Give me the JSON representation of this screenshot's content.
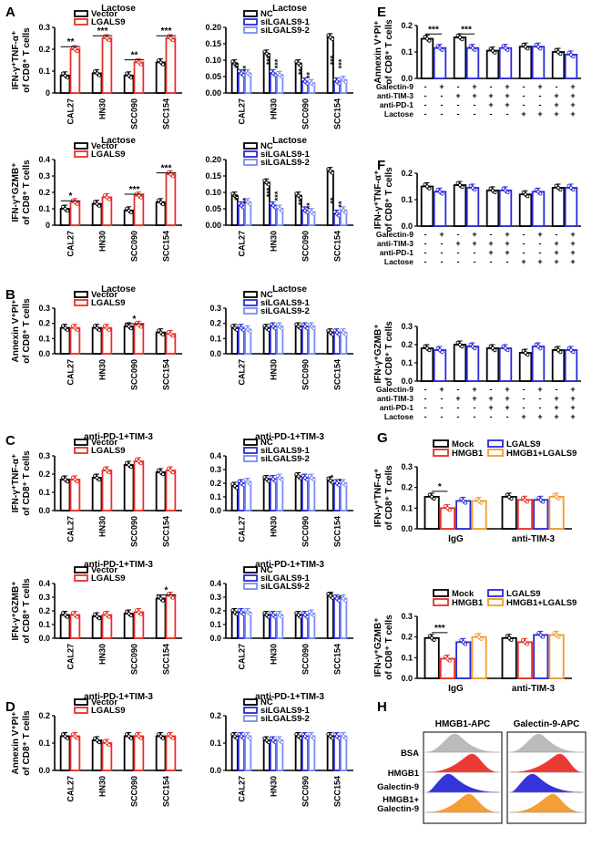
{
  "panel_letters": [
    "A",
    "B",
    "C",
    "D",
    "E",
    "F",
    "G",
    "H"
  ],
  "colors": {
    "black": "#000000",
    "red": "#e8312a",
    "blue": "#2a2ad6",
    "lightblue": "#7a8cf0",
    "orange": "#f39a2b",
    "gray": "#b8b8b8"
  },
  "chart_data": [
    {
      "id": "A1",
      "type": "bar",
      "title": "Lactose",
      "ylabel": [
        "IFN-γ⁺TNF-α⁺",
        "of CD8⁺ T cells"
      ],
      "ylim": [
        0,
        0.3
      ],
      "yticks": [
        0,
        0.1,
        0.2,
        0.3
      ],
      "yticklabels": [
        "0",
        "0.1",
        "0.2",
        "0.3"
      ],
      "categories": [
        "CAL27",
        "HN30",
        "SCC090",
        "SCC154"
      ],
      "legend": [
        "Vector",
        "LGALS9"
      ],
      "colorkeys": [
        "black",
        "red"
      ],
      "values": [
        [
          0.08,
          0.2
        ],
        [
          0.09,
          0.25
        ],
        [
          0.08,
          0.14
        ],
        [
          0.14,
          0.25
        ]
      ],
      "stars": [
        [
          "**",
          0.22
        ],
        [
          "***",
          0.27
        ],
        [
          "**",
          0.16
        ],
        [
          "***",
          0.27
        ]
      ]
    },
    {
      "id": "A2",
      "type": "bar",
      "title": "Lactose",
      "ylim": [
        0,
        0.2
      ],
      "yticks": [
        0,
        0.05,
        0.1,
        0.15,
        0.2
      ],
      "yticklabels": [
        "0.00",
        "0.05",
        "0.10",
        "0.15",
        "0.20"
      ],
      "categories": [
        "CAL27",
        "HN30",
        "SCC090",
        "SCC154"
      ],
      "legend": [
        "NC",
        "siLGALS9-1",
        "siLGALS9-2"
      ],
      "colorkeys": [
        "black",
        "blue",
        "lightblue"
      ],
      "values": [
        [
          0.09,
          0.06,
          0.06
        ],
        [
          0.12,
          0.06,
          0.055
        ],
        [
          0.09,
          0.035,
          0.03
        ],
        [
          0.17,
          0.035,
          0.04
        ]
      ],
      "stars": [
        [
          "**",
          0.085
        ],
        [
          "***",
          0.1
        ],
        [
          "**",
          0.065
        ],
        [
          "***",
          0.1
        ]
      ]
    },
    {
      "id": "A3",
      "type": "bar",
      "title": "Lactose",
      "ylabel": [
        "IFN-γ⁺GZMB⁺",
        "of CD8⁺ T cells"
      ],
      "ylim": [
        0,
        0.4
      ],
      "yticks": [
        0,
        0.1,
        0.2,
        0.3,
        0.4
      ],
      "yticklabels": [
        "0",
        "0.1",
        "0.2",
        "0.3",
        "0.4"
      ],
      "categories": [
        "CAL27",
        "HN30",
        "SCC090",
        "SCC154"
      ],
      "legend": [
        "Vector",
        "LGALS9"
      ],
      "colorkeys": [
        "black",
        "red"
      ],
      "values": [
        [
          0.1,
          0.14
        ],
        [
          0.13,
          0.17
        ],
        [
          0.09,
          0.18
        ],
        [
          0.14,
          0.31
        ]
      ],
      "stars": [
        [
          "*",
          0.16
        ],
        [
          "",
          0
        ],
        [
          "***",
          0.2
        ],
        [
          "***",
          0.33
        ]
      ]
    },
    {
      "id": "A4",
      "type": "bar",
      "title": "Lactose",
      "ylim": [
        0,
        0.2
      ],
      "yticks": [
        0,
        0.05,
        0.1,
        0.15,
        0.2
      ],
      "yticklabels": [
        "0.00",
        "0.05",
        "0.10",
        "0.15",
        "0.20"
      ],
      "categories": [
        "CAL27",
        "HN30",
        "SCC090",
        "SCC154"
      ],
      "legend": [
        "NC",
        "siLGALS9-1",
        "siLGALS9-2"
      ],
      "colorkeys": [
        "black",
        "blue",
        "lightblue"
      ],
      "values": [
        [
          0.09,
          0.06,
          0.07
        ],
        [
          0.13,
          0.06,
          0.05
        ],
        [
          0.09,
          0.045,
          0.04
        ],
        [
          0.165,
          0.035,
          0.045
        ]
      ],
      "stars": [
        [
          "**",
          0.085
        ],
        [
          "***",
          0.1
        ],
        [
          "**",
          0.07
        ],
        [
          "**",
          0.075
        ]
      ]
    },
    {
      "id": "B1",
      "type": "bar",
      "title": "Lactose",
      "ylabel": [
        "Annexin V⁺PI⁺",
        "of CD8⁺ T cells"
      ],
      "ylim": [
        0,
        0.3
      ],
      "yticks": [
        0,
        0.1,
        0.2,
        0.3
      ],
      "yticklabels": [
        "0.0",
        "0.1",
        "0.2",
        "0.3"
      ],
      "categories": [
        "CAL27",
        "HN30",
        "SCC090",
        "SCC154"
      ],
      "legend": [
        "Vector",
        "LGALS9"
      ],
      "colorkeys": [
        "black",
        "red"
      ],
      "values": [
        [
          0.17,
          0.17
        ],
        [
          0.17,
          0.17
        ],
        [
          0.18,
          0.19
        ],
        [
          0.14,
          0.13
        ]
      ],
      "stars": [
        [
          "",
          0
        ],
        [
          "",
          0
        ],
        [
          "*",
          0.21
        ],
        [
          "",
          0
        ]
      ]
    },
    {
      "id": "B2",
      "type": "bar",
      "title": "Lactose",
      "ylim": [
        0,
        0.3
      ],
      "yticks": [
        0,
        0.1,
        0.2,
        0.3
      ],
      "yticklabels": [
        "0.0",
        "0.1",
        "0.2",
        "0.3"
      ],
      "categories": [
        "CAL27",
        "HN30",
        "SCC090",
        "SCC154"
      ],
      "legend": [
        "NC",
        "siLGALS9-1",
        "siLGALS9-2"
      ],
      "colorkeys": [
        "black",
        "blue",
        "lightblue"
      ],
      "values": [
        [
          0.17,
          0.17,
          0.16
        ],
        [
          0.17,
          0.18,
          0.18
        ],
        [
          0.18,
          0.18,
          0.18
        ],
        [
          0.14,
          0.14,
          0.14
        ]
      ],
      "stars": []
    },
    {
      "id": "C1",
      "type": "bar",
      "title": "anti-PD-1+TIM-3",
      "ylabel": [
        "IFN-γ⁺TNF-α⁺",
        "of CD8⁺ T cells"
      ],
      "ylim": [
        0,
        0.3
      ],
      "yticks": [
        0,
        0.1,
        0.2,
        0.3
      ],
      "yticklabels": [
        "0.0",
        "0.1",
        "0.2",
        "0.3"
      ],
      "categories": [
        "CAL27",
        "HN30",
        "SCC090",
        "SCC154"
      ],
      "legend": [
        "Vector",
        "LGALS9"
      ],
      "colorkeys": [
        "black",
        "red"
      ],
      "values": [
        [
          0.17,
          0.17
        ],
        [
          0.18,
          0.22
        ],
        [
          0.25,
          0.27
        ],
        [
          0.21,
          0.22
        ]
      ],
      "stars": []
    },
    {
      "id": "C2",
      "type": "bar",
      "title": "anti-PD-1+TIM-3",
      "ylim": [
        0,
        0.4
      ],
      "yticks": [
        0,
        0.1,
        0.2,
        0.3,
        0.4
      ],
      "yticklabels": [
        "0.0",
        "0.1",
        "0.2",
        "0.3",
        "0.4"
      ],
      "categories": [
        "CAL27",
        "HN30",
        "SCC090",
        "SCC154"
      ],
      "legend": [
        "NC",
        "siLGALS9-1",
        "siLGALS9-2"
      ],
      "colorkeys": [
        "black",
        "blue",
        "lightblue"
      ],
      "values": [
        [
          0.18,
          0.2,
          0.21
        ],
        [
          0.23,
          0.23,
          0.24
        ],
        [
          0.25,
          0.24,
          0.24
        ],
        [
          0.22,
          0.2,
          0.2
        ]
      ],
      "stars": [
        [
          "",
          0
        ],
        [
          "",
          0
        ],
        [
          "",
          0
        ],
        [
          "*",
          0.25
        ]
      ]
    },
    {
      "id": "C3",
      "type": "bar",
      "title": "anti-PD-1+TIM-3",
      "ylabel": [
        "IFN-γ⁺GZMB⁺",
        "of CD8⁺ T cells"
      ],
      "ylim": [
        0,
        0.4
      ],
      "yticks": [
        0,
        0.1,
        0.2,
        0.3,
        0.4
      ],
      "yticklabels": [
        "0.0",
        "0.1",
        "0.2",
        "0.3",
        "0.4"
      ],
      "categories": [
        "CAL27",
        "HN30",
        "SCC090",
        "SCC154"
      ],
      "legend": [
        "Vector",
        "LGALS9"
      ],
      "colorkeys": [
        "black",
        "red"
      ],
      "values": [
        [
          0.17,
          0.17
        ],
        [
          0.16,
          0.17
        ],
        [
          0.18,
          0.19
        ],
        [
          0.29,
          0.31
        ]
      ],
      "stars": [
        [
          "",
          0
        ],
        [
          "",
          0
        ],
        [
          "",
          0
        ],
        [
          "*",
          0.33
        ]
      ]
    },
    {
      "id": "C4",
      "type": "bar",
      "title": "anti-PD-1+TIM-3",
      "ylim": [
        0,
        0.4
      ],
      "yticks": [
        0,
        0.1,
        0.2,
        0.3,
        0.4
      ],
      "yticklabels": [
        "0.0",
        "0.1",
        "0.2",
        "0.3",
        "0.4"
      ],
      "categories": [
        "CAL27",
        "HN30",
        "SCC090",
        "SCC154"
      ],
      "legend": [
        "NC",
        "siLGALS9-1",
        "siLGALS9-2"
      ],
      "colorkeys": [
        "black",
        "blue",
        "lightblue"
      ],
      "values": [
        [
          0.19,
          0.19,
          0.19
        ],
        [
          0.17,
          0.17,
          0.17
        ],
        [
          0.17,
          0.17,
          0.18
        ],
        [
          0.31,
          0.29,
          0.29
        ]
      ],
      "stars": [
        [
          "",
          0
        ],
        [
          "",
          0
        ],
        [
          "",
          0
        ],
        [
          "*",
          0.33
        ]
      ]
    },
    {
      "id": "D1",
      "type": "bar",
      "title": "anti-PD-1+TIM-3",
      "ylabel": [
        "Annexin V⁺PI⁺",
        "of CD8⁺ T cells"
      ],
      "ylim": [
        0,
        0.2
      ],
      "yticks": [
        0,
        0.1,
        0.2
      ],
      "yticklabels": [
        "0.0",
        "0.1",
        "0.2"
      ],
      "categories": [
        "CAL27",
        "HN30",
        "SCC090",
        "SCC154"
      ],
      "legend": [
        "Vector",
        "LGALS9"
      ],
      "colorkeys": [
        "black",
        "red"
      ],
      "values": [
        [
          0.125,
          0.125
        ],
        [
          0.11,
          0.1
        ],
        [
          0.125,
          0.125
        ],
        [
          0.125,
          0.125
        ]
      ],
      "stars": []
    },
    {
      "id": "D2",
      "type": "bar",
      "title": "anti-PD-1+TIM-3",
      "ylim": [
        0,
        0.2
      ],
      "yticks": [
        0,
        0.1,
        0.2
      ],
      "yticklabels": [
        "0.0",
        "0.1",
        "0.2"
      ],
      "categories": [
        "CAL27",
        "HN30",
        "SCC090",
        "SCC154"
      ],
      "legend": [
        "NC",
        "siLGALS9-1",
        "siLGALS9-2"
      ],
      "colorkeys": [
        "black",
        "blue",
        "lightblue"
      ],
      "values": [
        [
          0.125,
          0.125,
          0.125
        ],
        [
          0.11,
          0.11,
          0.11
        ],
        [
          0.125,
          0.125,
          0.125
        ],
        [
          0.125,
          0.125,
          0.125
        ]
      ],
      "stars": []
    },
    {
      "id": "E",
      "type": "bar",
      "ylabel": [
        "Annexin V⁺PI⁺",
        "of CD8⁺ T cells"
      ],
      "ylim": [
        0,
        0.2
      ],
      "yticks": [
        0,
        0.1,
        0.2
      ],
      "yticklabels": [
        "0.0",
        "0.1",
        "0.2"
      ],
      "values": [
        0.15,
        0.115,
        0.155,
        0.115,
        0.105,
        0.115,
        0.12,
        0.12,
        0.1,
        0.09
      ],
      "colorkeys": [
        "black",
        "blue",
        "black",
        "blue",
        "black",
        "blue",
        "black",
        "blue",
        "black",
        "blue"
      ],
      "stars": [
        [
          "***",
          0,
          1,
          0.175
        ],
        [
          "***",
          2,
          3,
          0.175
        ]
      ],
      "treatments": {
        "rows": [
          "Galectin-9",
          "anti-TIM-3",
          "anti-PD-1",
          "Lactose"
        ],
        "signs": [
          [
            "-",
            "+",
            "-",
            "+",
            "-",
            "+",
            "-",
            "+",
            "-",
            "+"
          ],
          [
            "-",
            "-",
            "+",
            "+",
            "+",
            "+",
            "-",
            "-",
            "+",
            "+"
          ],
          [
            "-",
            "-",
            "-",
            "-",
            "+",
            "+",
            "-",
            "-",
            "+",
            "+"
          ],
          [
            "-",
            "-",
            "-",
            "-",
            "-",
            "-",
            "+",
            "+",
            "+",
            "+"
          ]
        ]
      }
    },
    {
      "id": "F1",
      "type": "bar",
      "ylabel": [
        "IFN-γ⁺TNF-α⁺",
        "of CD8⁺ T cells"
      ],
      "ylim": [
        0,
        0.2
      ],
      "yticks": [
        0,
        0.1,
        0.2
      ],
      "yticklabels": [
        "0.0",
        "0.1",
        "0.2"
      ],
      "values": [
        0.15,
        0.13,
        0.155,
        0.145,
        0.135,
        0.135,
        0.12,
        0.13,
        0.145,
        0.145
      ],
      "colorkeys": [
        "black",
        "blue",
        "black",
        "blue",
        "black",
        "blue",
        "black",
        "blue",
        "black",
        "blue"
      ],
      "stars": [],
      "treatments": {
        "rows": [
          "Galectin-9",
          "anti-TIM-3",
          "anti-PD-1",
          "Lactose"
        ],
        "signs": [
          [
            "-",
            "+",
            "-",
            "+",
            "-",
            "+",
            "-",
            "+",
            "-",
            "+"
          ],
          [
            "-",
            "-",
            "+",
            "+",
            "+",
            "+",
            "-",
            "-",
            "+",
            "+"
          ],
          [
            "-",
            "-",
            "-",
            "-",
            "+",
            "+",
            "-",
            "-",
            "+",
            "+"
          ],
          [
            "-",
            "-",
            "-",
            "-",
            "-",
            "-",
            "+",
            "+",
            "+",
            "+"
          ]
        ]
      }
    },
    {
      "id": "F2",
      "type": "bar",
      "ylabel": [
        "IFN-γ⁺GZMB⁺",
        "of CD8⁺ T cells"
      ],
      "ylim": [
        0,
        0.3
      ],
      "yticks": [
        0,
        0.1,
        0.2,
        0.3
      ],
      "yticklabels": [
        "0.0",
        "0.1",
        "0.2",
        "0.3"
      ],
      "values": [
        0.18,
        0.17,
        0.2,
        0.19,
        0.18,
        0.18,
        0.155,
        0.19,
        0.17,
        0.17
      ],
      "colorkeys": [
        "black",
        "blue",
        "black",
        "blue",
        "black",
        "blue",
        "black",
        "blue",
        "black",
        "blue"
      ],
      "stars": [],
      "treatments": {
        "rows": [
          "Galectin-9",
          "anti-TIM-3",
          "anti-PD-1",
          "Lactose"
        ],
        "signs": [
          [
            "-",
            "+",
            "-",
            "+",
            "-",
            "+",
            "-",
            "+",
            "-",
            "+"
          ],
          [
            "-",
            "-",
            "+",
            "+",
            "+",
            "+",
            "-",
            "-",
            "+",
            "+"
          ],
          [
            "-",
            "-",
            "-",
            "-",
            "+",
            "+",
            "-",
            "-",
            "+",
            "+"
          ],
          [
            "-",
            "-",
            "-",
            "-",
            "-",
            "-",
            "+",
            "+",
            "+",
            "+"
          ]
        ]
      }
    },
    {
      "id": "G1",
      "type": "bar",
      "ylabel": [
        "IFN-γ⁺TNF-α⁺",
        "of CD8⁺ T cells"
      ],
      "ylim": [
        0,
        0.3
      ],
      "yticks": [
        0,
        0.1,
        0.2,
        0.3
      ],
      "yticklabels": [
        "0.0",
        "0.1",
        "0.2",
        "0.3"
      ],
      "groups": [
        "IgG",
        "anti-TIM-3"
      ],
      "legend": [
        "Mock",
        "HMGB1",
        "LGALS9",
        "HMGB1+LGALS9"
      ],
      "colorkeys": [
        "black",
        "red",
        "blue",
        "orange"
      ],
      "values": [
        [
          0.155,
          0.1,
          0.135,
          0.135
        ],
        [
          0.155,
          0.14,
          0.14,
          0.155
        ]
      ],
      "stars": [
        [
          "*",
          0,
          1,
          0.19
        ]
      ]
    },
    {
      "id": "G2",
      "type": "bar",
      "ylabel": [
        "IFN-γ⁺GZMB⁺",
        "of CD8⁺ T cells"
      ],
      "ylim": [
        0,
        0.3
      ],
      "yticks": [
        0,
        0.1,
        0.2,
        0.3
      ],
      "yticklabels": [
        "0.0",
        "0.1",
        "0.2",
        "0.3"
      ],
      "groups": [
        "IgG",
        "anti-TIM-3"
      ],
      "legend": [
        "Mock",
        "HMGB1",
        "LGALS9",
        "HMGB1+LGALS9"
      ],
      "colorkeys": [
        "black",
        "red",
        "blue",
        "orange"
      ],
      "values": [
        [
          0.195,
          0.095,
          0.175,
          0.2
        ],
        [
          0.195,
          0.175,
          0.21,
          0.21
        ]
      ],
      "stars": [
        [
          "***",
          0,
          1,
          0.23
        ]
      ]
    }
  ],
  "flow": {
    "headers": [
      "HMGB1-APC",
      "Galectin-9-APC"
    ],
    "rows": [
      "BSA",
      "HMGB1",
      "Galectin-9",
      "HMGB1+",
      "Galectin-9"
    ],
    "colorkeys": [
      "gray",
      "red",
      "blue",
      "orange"
    ]
  }
}
